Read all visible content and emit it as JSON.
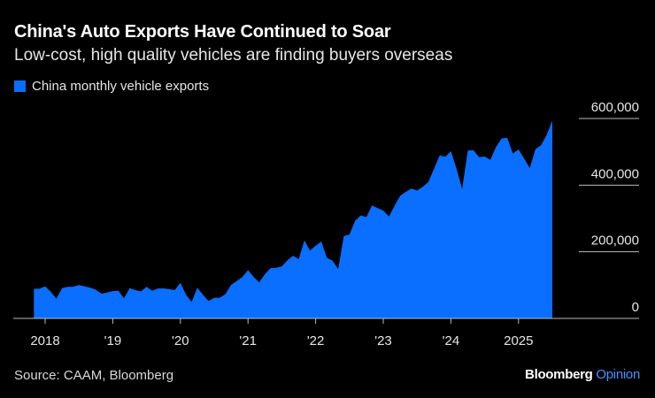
{
  "title": "China's Auto Exports Have Continued to Soar",
  "subtitle": "Low-cost, high quality vehicles are finding buyers overseas",
  "source": "Source: CAAM, Bloomberg",
  "logo": {
    "brand": "Bloomberg",
    "section": "Opinion"
  },
  "colors": {
    "series": "#0a6eff",
    "background": "#000000",
    "axis": "#cccccc"
  },
  "chart_data": {
    "type": "area",
    "title": "China's Auto Exports Have Continued to Soar",
    "xlabel": "",
    "ylabel": "",
    "ylim": [
      0,
      600000
    ],
    "yticks": [
      0,
      200000,
      400000,
      600000
    ],
    "ytick_labels": [
      "0",
      "200,000",
      "400,000",
      "600,000"
    ],
    "xticks": [
      "2018-01",
      "2019-01",
      "2020-01",
      "2021-01",
      "2022-01",
      "2023-01",
      "2024-01",
      "2025-01"
    ],
    "xtick_labels": [
      "2018",
      "'19",
      "'20",
      "'21",
      "'22",
      "'23",
      "'24",
      "2025"
    ],
    "legend": "top-left",
    "grid": "y (short right-side lines)",
    "series": [
      {
        "name": "China monthly vehicle exports",
        "start": "2017-11",
        "end": "2025-07",
        "frequency": "monthly",
        "values": [
          89000,
          89000,
          96000,
          80000,
          59000,
          91000,
          95000,
          95000,
          100000,
          96000,
          92000,
          86000,
          74000,
          78000,
          82000,
          83000,
          60000,
          91000,
          85000,
          81000,
          95000,
          83000,
          90000,
          90000,
          88000,
          85000,
          107000,
          71000,
          49000,
          92000,
          71000,
          52000,
          62000,
          62000,
          73000,
          101000,
          112000,
          124000,
          145000,
          124000,
          108000,
          133000,
          151000,
          152000,
          156000,
          175000,
          188000,
          178000,
          234000,
          204000,
          218000,
          231000,
          182000,
          173000,
          148000,
          247000,
          252000,
          293000,
          309000,
          304000,
          339000,
          331000,
          324000,
          306000,
          338000,
          368000,
          380000,
          390000,
          384000,
          395000,
          409000,
          449000,
          489000,
          485000,
          502000,
          449000,
          388000,
          504000,
          505000,
          484000,
          486000,
          476000,
          514000,
          540000,
          542000,
          495000,
          507000,
          480000,
          451000,
          508000,
          520000,
          551000,
          594000
        ]
      }
    ]
  }
}
